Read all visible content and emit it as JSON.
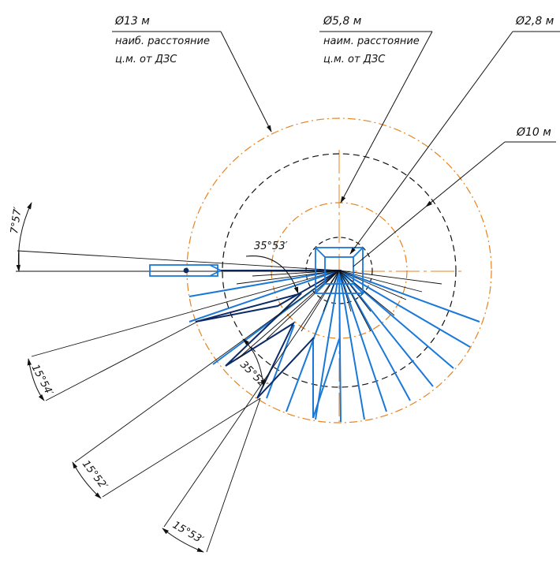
{
  "dimensions": {
    "d13": {
      "value": "Ø13 м",
      "note_line1": "наиб. расстояние",
      "note_line2": "ц.м. от ДЗС"
    },
    "d58": {
      "value": "Ø5,8 м",
      "note_line1": "наим. расстояние",
      "note_line2": "ц.м. от ДЗС"
    },
    "d28": {
      "value": "Ø2,8 м"
    },
    "d10": {
      "value": "Ø10 м"
    }
  },
  "angles": {
    "a757": "7°57′",
    "a3553": "35°53′",
    "a3552": "35°52′",
    "a1554": "15°54′",
    "a1552": "15°52′",
    "a1553": "15°53′"
  },
  "colors": {
    "orange": "#e8821e",
    "black": "#111111",
    "blue": "#1a78d8",
    "navy": "#0c2a66"
  }
}
